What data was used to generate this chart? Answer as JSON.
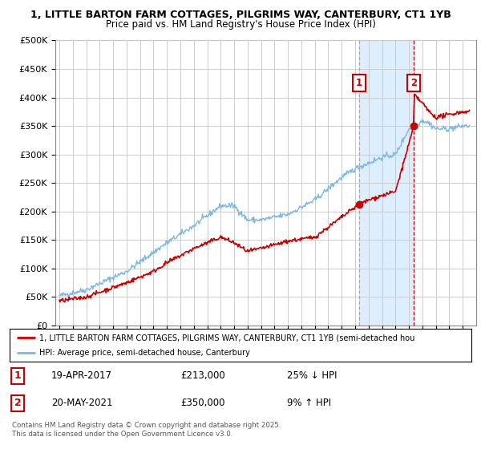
{
  "title_line1": "1, LITTLE BARTON FARM COTTAGES, PILGRIMS WAY, CANTERBURY, CT1 1YB",
  "title_line2": "Price paid vs. HM Land Registry's House Price Index (HPI)",
  "ylim": [
    0,
    500000
  ],
  "yticks": [
    0,
    50000,
    100000,
    150000,
    200000,
    250000,
    300000,
    350000,
    400000,
    450000,
    500000
  ],
  "ytick_labels": [
    "£0",
    "£50K",
    "£100K",
    "£150K",
    "£200K",
    "£250K",
    "£300K",
    "£350K",
    "£400K",
    "£450K",
    "£500K"
  ],
  "hpi_color": "#7ab8e8",
  "price_color": "#cc0000",
  "shade_color": "#ddeeff",
  "vline1_color": "#aaaaaa",
  "vline2_color": "#cc0000",
  "sale1_t": 2017.29,
  "sale1_v": 213000,
  "sale2_t": 2021.37,
  "sale2_v": 350000,
  "legend_label1": "1, LITTLE BARTON FARM COTTAGES, PILGRIMS WAY, CANTERBURY, CT1 1YB (semi-detached hou",
  "legend_label2": "HPI: Average price, semi-detached house, Canterbury",
  "note1_label": "1",
  "note1_date": "19-APR-2017",
  "note1_price": "£213,000",
  "note1_hpi": "25% ↓ HPI",
  "note2_label": "2",
  "note2_date": "20-MAY-2021",
  "note2_price": "£350,000",
  "note2_hpi": "9% ↑ HPI",
  "footer": "Contains HM Land Registry data © Crown copyright and database right 2025.\nThis data is licensed under the Open Government Licence v3.0.",
  "background_color": "#ffffff",
  "grid_color": "#cccccc",
  "hpi_knots_t": [
    1995,
    1997,
    2000,
    2003,
    2005,
    2007,
    2008,
    2009,
    2010,
    2012,
    2014,
    2016,
    2017,
    2018,
    2019,
    2020,
    2021,
    2021.5,
    2022,
    2022.5,
    2023,
    2024,
    2025
  ],
  "hpi_knots_v": [
    52000,
    63000,
    95000,
    145000,
    175000,
    210000,
    210000,
    185000,
    185000,
    195000,
    220000,
    260000,
    275000,
    285000,
    295000,
    300000,
    345000,
    350000,
    360000,
    355000,
    345000,
    345000,
    350000
  ],
  "price_knots_t": [
    1995,
    1997,
    2000,
    2002,
    2003,
    2005,
    2007,
    2008,
    2009,
    2010,
    2012,
    2014,
    2016,
    2017.29,
    2018,
    2019,
    2020,
    2021.37,
    2021.38,
    2022,
    2022.5,
    2023,
    2024,
    2025
  ],
  "price_knots_v": [
    43000,
    50000,
    75000,
    95000,
    110000,
    135000,
    155000,
    145000,
    130000,
    135000,
    148000,
    155000,
    190000,
    213000,
    220000,
    228000,
    235000,
    350000,
    405000,
    390000,
    375000,
    365000,
    370000,
    375000
  ]
}
